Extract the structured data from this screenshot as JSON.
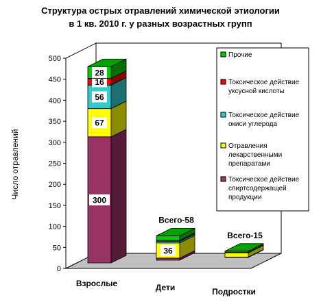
{
  "chart_data": {
    "type": "bar",
    "stacked": true,
    "three_d": true,
    "title": [
      "Структура острых отравлений химической этиологии",
      "в 1 кв. 2010 г. у разных возрастных групп"
    ],
    "ylabel": "Число отравлений",
    "ylim": [
      0,
      500
    ],
    "yticks": [
      0,
      50,
      100,
      150,
      200,
      250,
      300,
      350,
      400,
      450,
      500
    ],
    "grid": false,
    "legend_position": "right",
    "categories": [
      "Взрослые",
      "Дети",
      "Подростки"
    ],
    "totals": [
      "",
      "Всего-58",
      "Всего-15"
    ],
    "series": [
      {
        "name": "Токсическое действие спиртсодержащей продукции",
        "legend_lines": [
          "Токсическое действие",
          "спиртсодержащей",
          "продукции"
        ],
        "color": "#993366",
        "values": [
          300,
          5,
          1
        ],
        "labels": [
          "300",
          "",
          ""
        ]
      },
      {
        "name": "Отравления лекарственными препаратами",
        "legend_lines": [
          "Отравления",
          "лекарственными",
          "препаратами"
        ],
        "color": "#ffff00",
        "values": [
          67,
          36,
          10
        ],
        "labels": [
          "67",
          "36",
          ""
        ]
      },
      {
        "name": "Токсическое действие окиси углерода",
        "legend_lines": [
          "Токсическое действие",
          "окиси углерода"
        ],
        "color": "#33cccc",
        "values": [
          56,
          4,
          1
        ],
        "labels": [
          "56",
          "",
          ""
        ]
      },
      {
        "name": "Токсическое действие уксусной кислоты",
        "legend_lines": [
          "Токсическое действие",
          "уксусной кислоты"
        ],
        "color": "#ff0000",
        "values": [
          16,
          2,
          0
        ],
        "labels": [
          "16",
          "",
          ""
        ]
      },
      {
        "name": "Прочие",
        "legend_lines": [
          "Прочие"
        ],
        "color": "#00cc00",
        "values": [
          28,
          11,
          3
        ],
        "labels": [
          "28",
          "",
          ""
        ]
      }
    ],
    "legend_order": [
      4,
      3,
      2,
      1,
      0
    ]
  }
}
